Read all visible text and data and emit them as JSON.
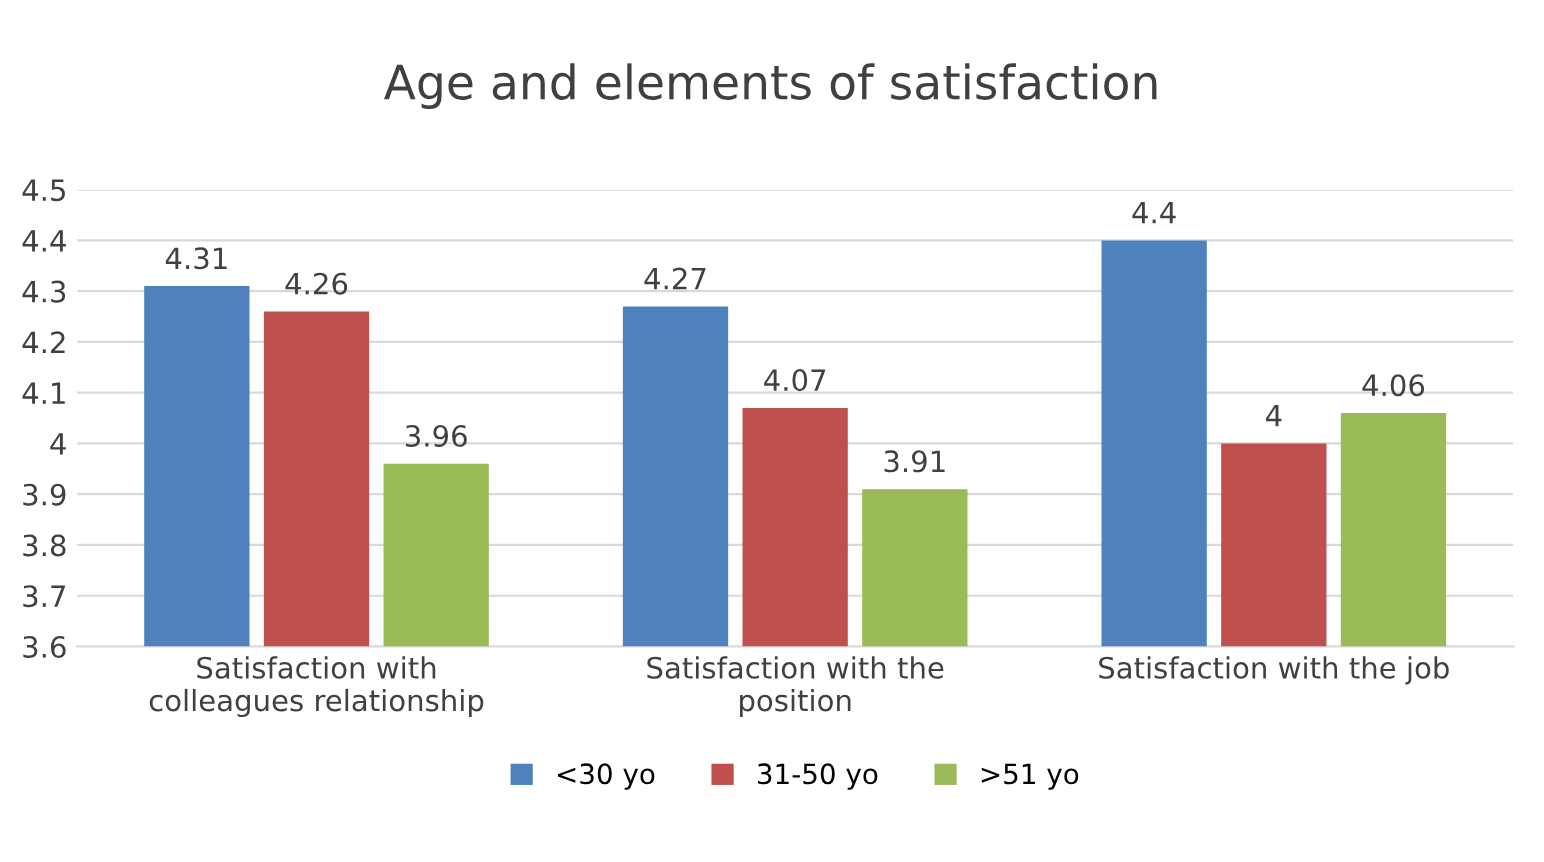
{
  "chart_data": {
    "type": "bar",
    "title": "Age and elements of satisfaction",
    "categories": [
      "Satisfaction with\ncolleagues relationship",
      "Satisfaction with the\nposition",
      "Satisfaction with the job"
    ],
    "series": [
      {
        "name": "<30 yo",
        "color": "#4f81bd",
        "values": [
          4.31,
          4.27,
          4.4
        ]
      },
      {
        "name": "31-50 yo",
        "color": "#c0504d",
        "values": [
          4.26,
          4.07,
          4
        ]
      },
      {
        "name": ">51 yo",
        "color": "#9bbb59",
        "values": [
          3.96,
          3.91,
          4.06
        ]
      }
    ],
    "ylim": [
      3.6,
      4.5
    ],
    "yticks": [
      3.6,
      3.7,
      3.8,
      3.9,
      4,
      4.1,
      4.2,
      4.3,
      4.4,
      4.5
    ],
    "grid": "y",
    "legend": "bottom",
    "data_labels": true
  }
}
